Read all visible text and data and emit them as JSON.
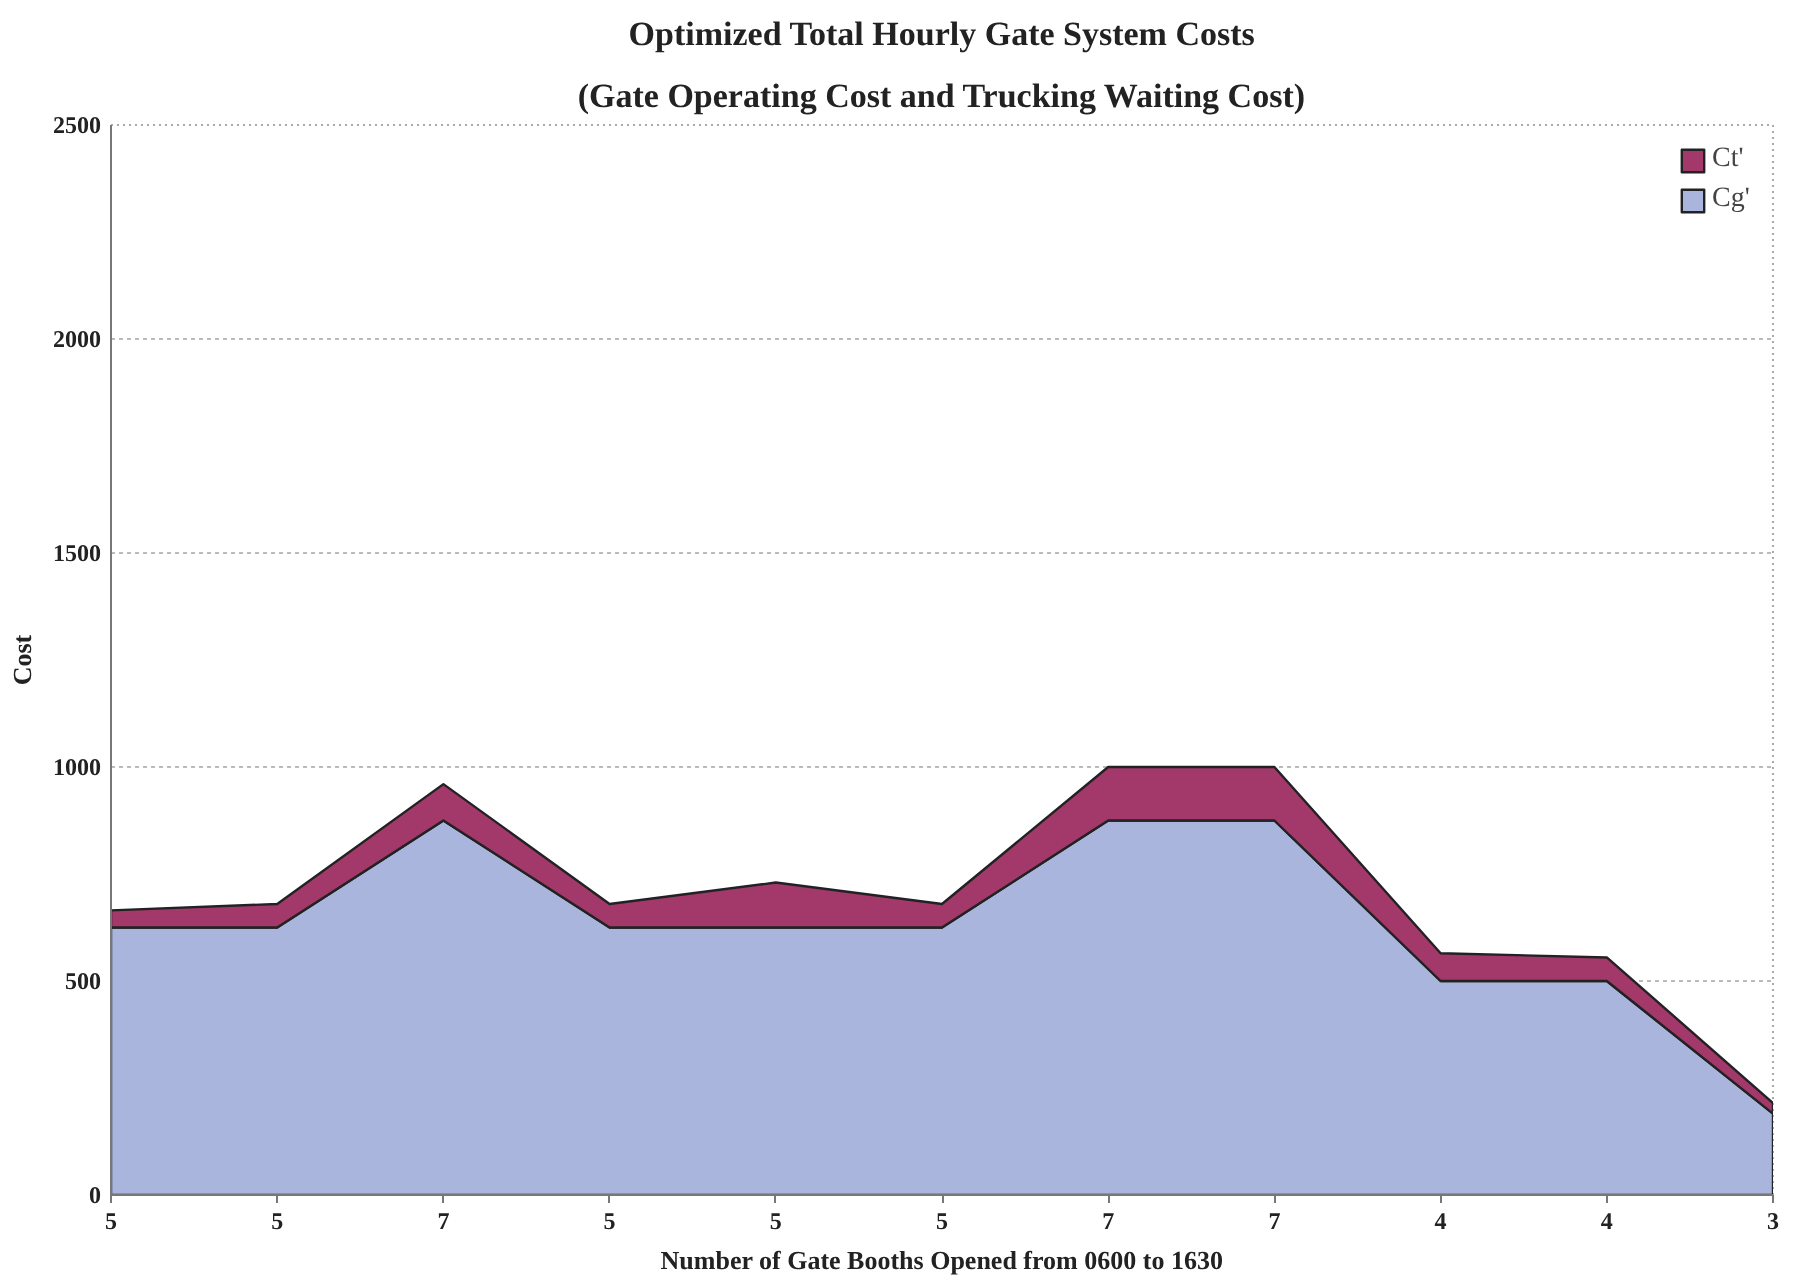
{
  "chart_data": {
    "type": "area",
    "title": "Optimized Total Hourly Gate System Costs",
    "subtitle": "(Gate Operating Cost and Trucking Waiting Cost)",
    "xlabel": "Number of Gate Booths Opened from 0600 to 1630",
    "ylabel": "Cost",
    "categories": [
      "5",
      "5",
      "7",
      "5",
      "5",
      "5",
      "7",
      "7",
      "4",
      "4",
      "3"
    ],
    "series": [
      {
        "name": "Cg'",
        "color": "#a9b5dd",
        "values": [
          625,
          625,
          875,
          625,
          625,
          625,
          875,
          875,
          500,
          500,
          190
        ]
      },
      {
        "name": "Ct'",
        "color": "#a3386a",
        "values": [
          40,
          55,
          85,
          55,
          105,
          55,
          125,
          125,
          65,
          55,
          25
        ]
      }
    ],
    "stacked": true,
    "ylim": [
      0,
      2500
    ],
    "yticks": [
      0,
      500,
      1000,
      1500,
      2000,
      2500
    ],
    "grid": "y",
    "legend": "top right"
  }
}
